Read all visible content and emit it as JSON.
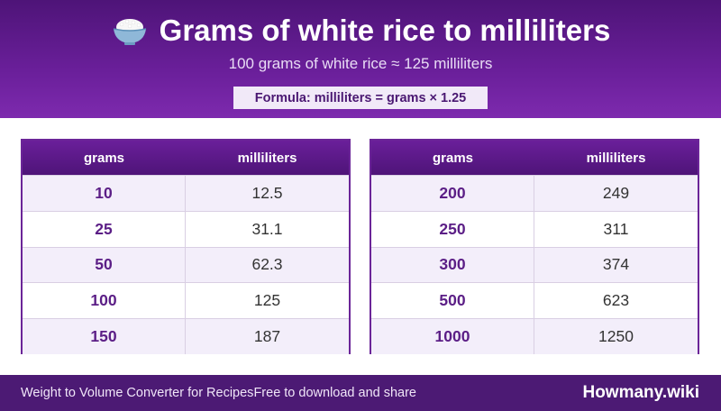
{
  "header": {
    "title": "Grams of white rice to milliliters",
    "icon": "rice-bowl-icon",
    "subtitle": "100 grams of white rice ≈ 125 milliliters",
    "formula": "Formula: milliliters = grams × 1.25"
  },
  "tables": [
    {
      "col_grams": "grams",
      "col_ml": "milliliters",
      "rows": [
        {
          "grams": "10",
          "ml": "12.5"
        },
        {
          "grams": "25",
          "ml": "31.1"
        },
        {
          "grams": "50",
          "ml": "62.3"
        },
        {
          "grams": "100",
          "ml": "125"
        },
        {
          "grams": "150",
          "ml": "187"
        }
      ]
    },
    {
      "col_grams": "grams",
      "col_ml": "milliliters",
      "rows": [
        {
          "grams": "200",
          "ml": "249"
        },
        {
          "grams": "250",
          "ml": "311"
        },
        {
          "grams": "300",
          "ml": "374"
        },
        {
          "grams": "500",
          "ml": "623"
        },
        {
          "grams": "1000",
          "ml": "1250"
        }
      ]
    }
  ],
  "footer": {
    "converter": "Weight to Volume Converter for Recipes",
    "free": "Free to download and share",
    "brand": "Howmany.wiki"
  },
  "colors": {
    "header_purple": "#6a1f9a",
    "footer_purple": "#4c1a74",
    "grams_text": "#5b1e86"
  }
}
